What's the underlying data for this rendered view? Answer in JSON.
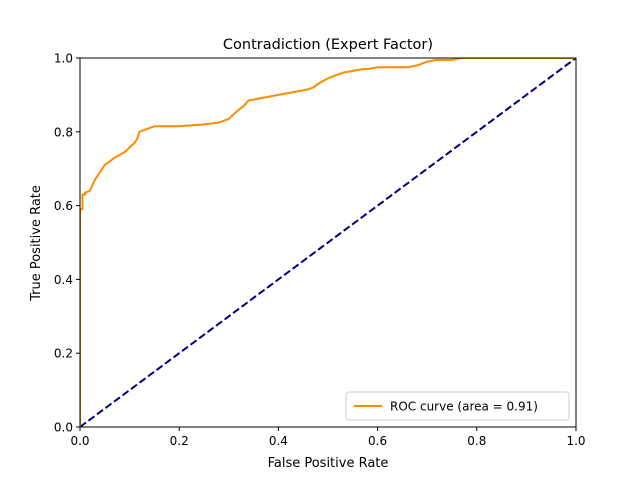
{
  "chart_data": {
    "type": "line",
    "title": "Contradiction (Expert Factor)",
    "xlabel": "False Positive Rate",
    "ylabel": "True Positive Rate",
    "xlim": [
      0.0,
      1.0
    ],
    "ylim": [
      0.0,
      1.0
    ],
    "xticks": [
      0.0,
      0.2,
      0.4,
      0.6,
      0.8,
      1.0
    ],
    "yticks": [
      0.0,
      0.2,
      0.4,
      0.6,
      0.8,
      1.0
    ],
    "xtick_labels": [
      "0.0",
      "0.2",
      "0.4",
      "0.6",
      "0.8",
      "1.0"
    ],
    "ytick_labels": [
      "0.0",
      "0.2",
      "0.4",
      "0.6",
      "0.8",
      "1.0"
    ],
    "grid": false,
    "legend_position": "lower-right",
    "series": [
      {
        "name": "ROC curve (area = 0.91)",
        "color": "#ff8c00",
        "style": "solid",
        "x": [
          0.0,
          0.0,
          0.0,
          0.005,
          0.005,
          0.01,
          0.01,
          0.02,
          0.03,
          0.04,
          0.05,
          0.06,
          0.07,
          0.09,
          0.11,
          0.115,
          0.12,
          0.14,
          0.15,
          0.2,
          0.25,
          0.28,
          0.29,
          0.3,
          0.32,
          0.33,
          0.34,
          0.36,
          0.38,
          0.4,
          0.44,
          0.46,
          0.47,
          0.48,
          0.5,
          0.52,
          0.53,
          0.55,
          0.57,
          0.58,
          0.6,
          0.65,
          0.66,
          0.68,
          0.69,
          0.7,
          0.72,
          0.75,
          0.77,
          0.8,
          0.9,
          0.97,
          0.98,
          1.0
        ],
        "y": [
          0.0,
          0.43,
          0.59,
          0.59,
          0.63,
          0.63,
          0.635,
          0.64,
          0.67,
          0.69,
          0.71,
          0.72,
          0.73,
          0.745,
          0.77,
          0.78,
          0.8,
          0.81,
          0.815,
          0.815,
          0.82,
          0.825,
          0.83,
          0.835,
          0.86,
          0.87,
          0.885,
          0.89,
          0.895,
          0.9,
          0.91,
          0.915,
          0.92,
          0.93,
          0.945,
          0.955,
          0.96,
          0.965,
          0.97,
          0.97,
          0.975,
          0.975,
          0.975,
          0.98,
          0.985,
          0.99,
          0.995,
          0.995,
          1.0,
          1.0,
          1.0,
          1.0,
          1.0,
          1.0
        ]
      },
      {
        "color": "#000080",
        "style": "dashed",
        "x": [
          0.0,
          1.0
        ],
        "y": [
          0.0,
          1.0
        ]
      }
    ]
  }
}
